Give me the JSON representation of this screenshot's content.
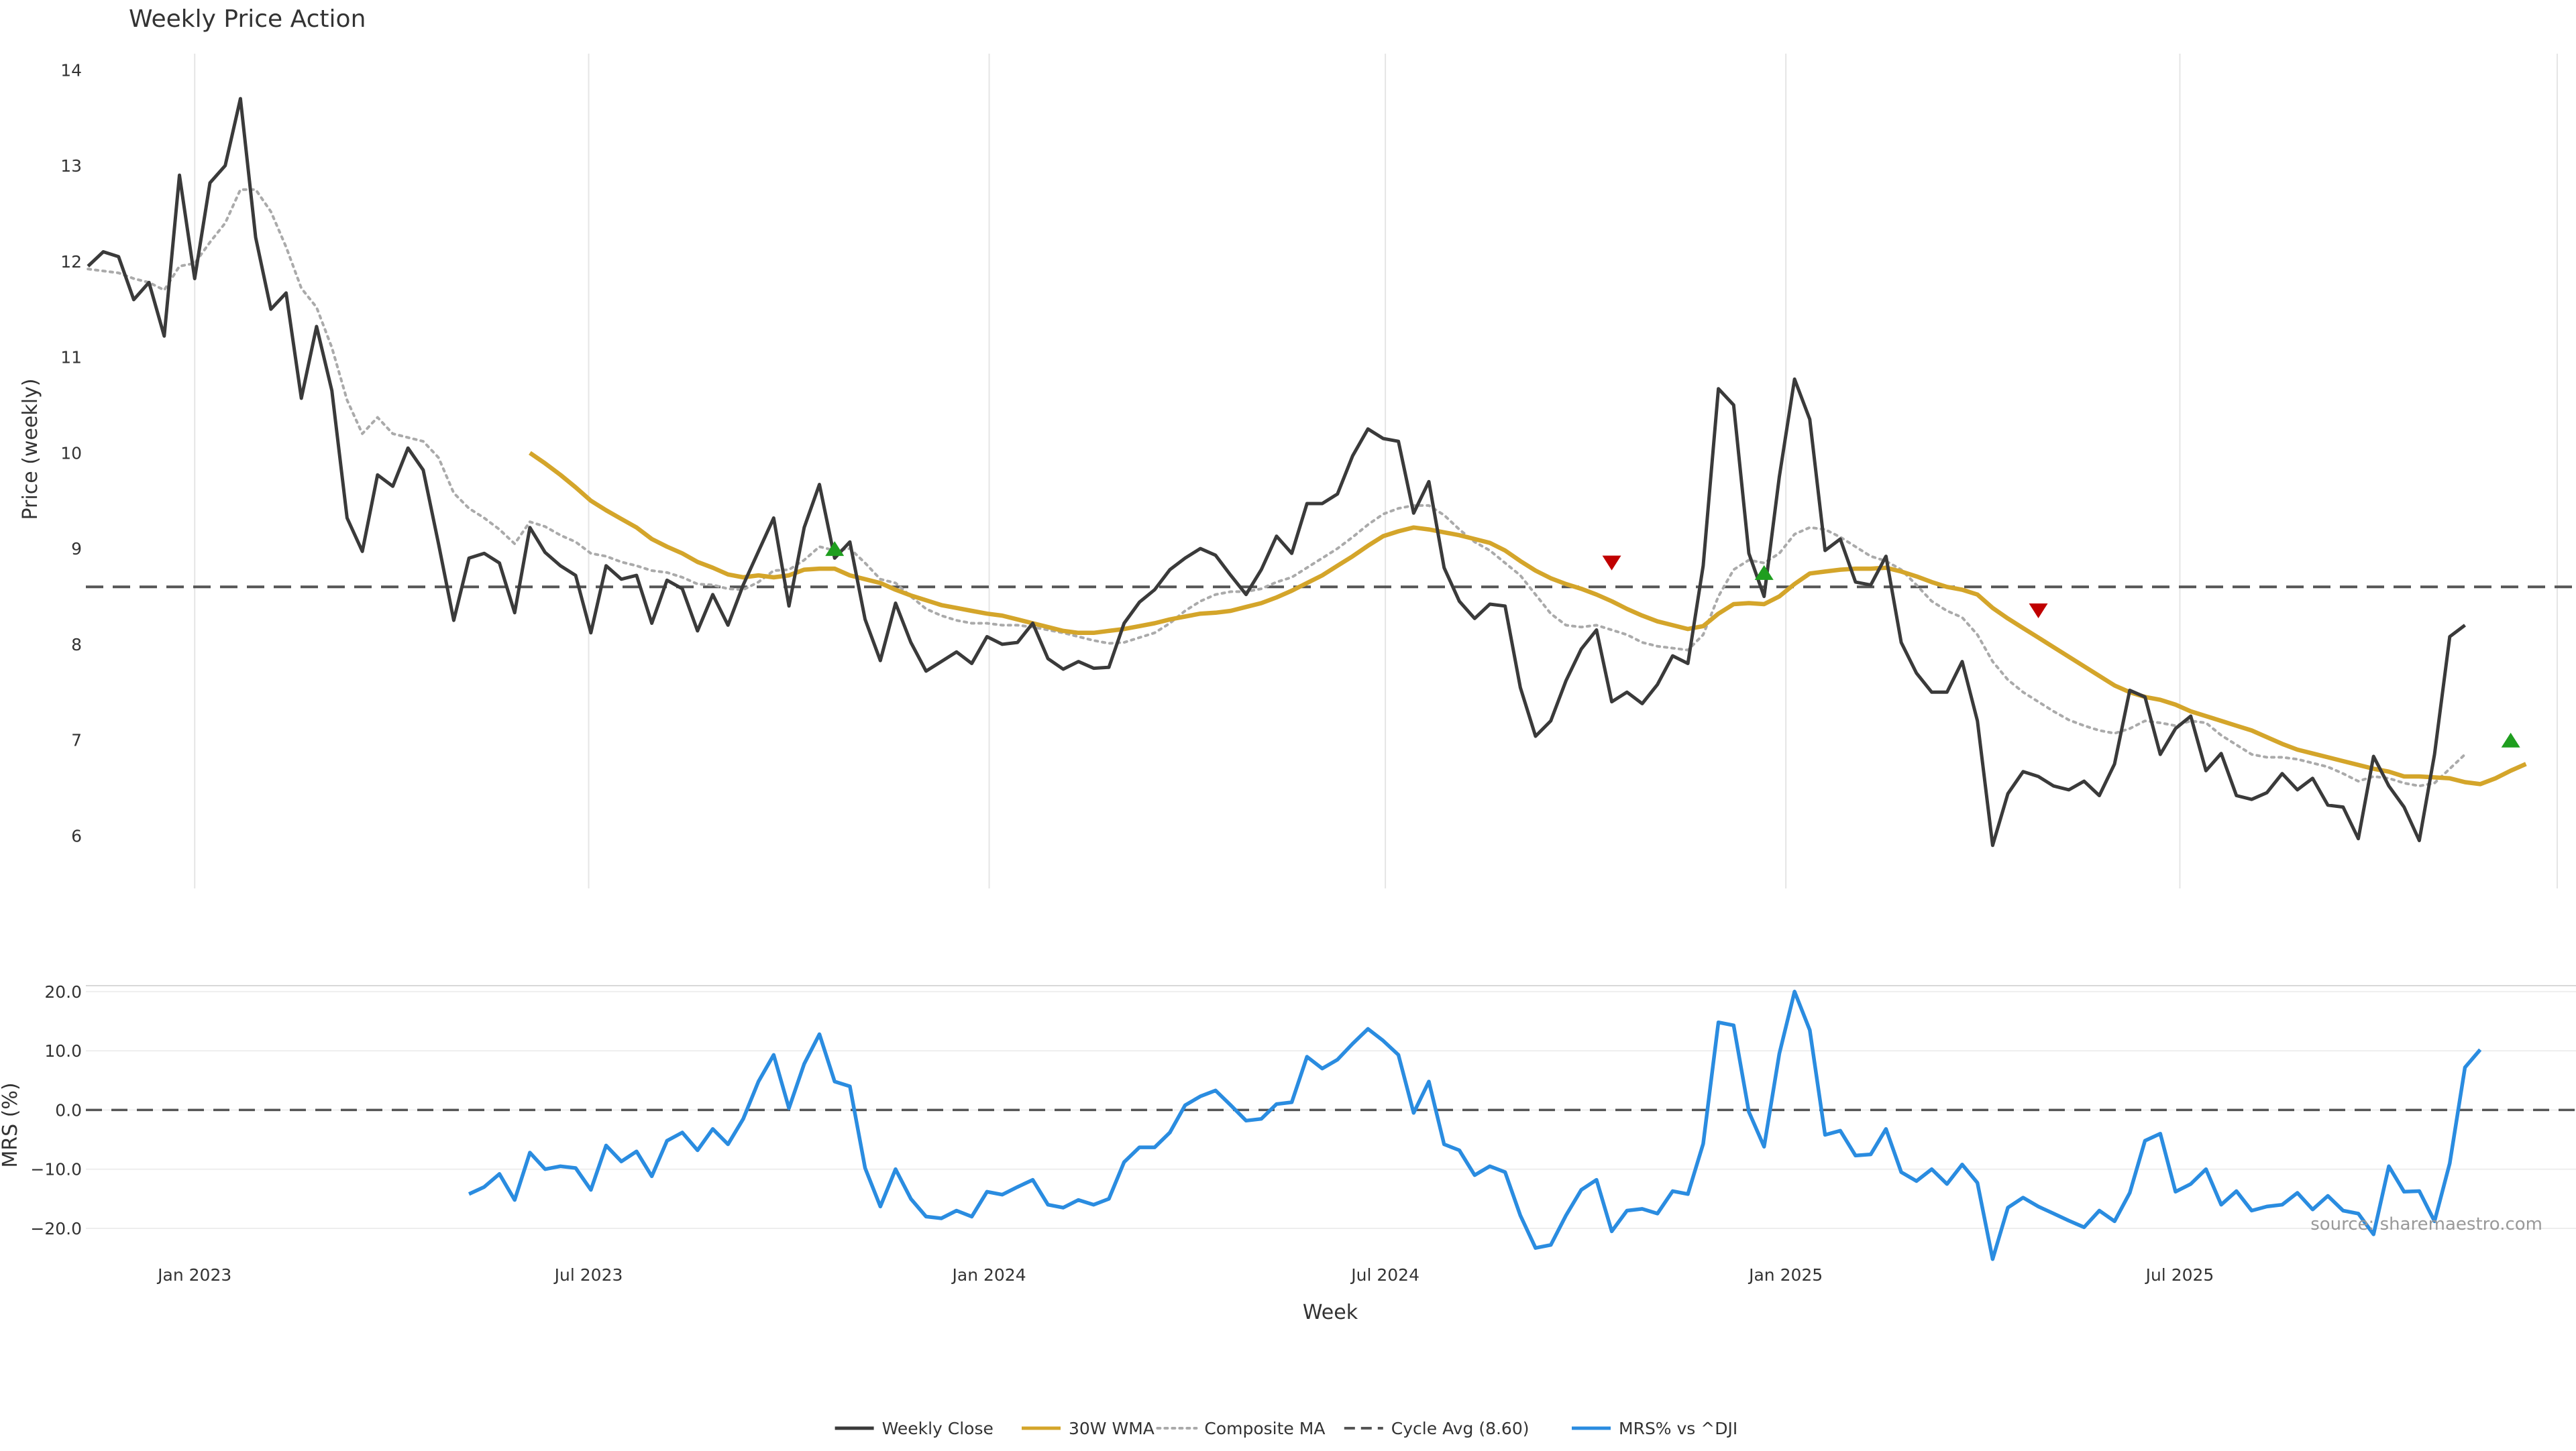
{
  "chart_data": {
    "type": "line",
    "title": "Weekly Price Action",
    "source": "source: sharemaestro.com",
    "xlabel": "Week",
    "x_ticks": [
      "Jan 2023",
      "Jul 2023",
      "Jan 2024",
      "Jul 2024",
      "Jan 2025",
      "Jul 2025"
    ],
    "x_tick_dates": [
      "2023-01-01",
      "2023-07-01",
      "2024-01-01",
      "2024-07-01",
      "2025-01-01",
      "2025-07-01"
    ],
    "x_range": [
      "2022-11-12",
      "2025-12-30"
    ],
    "grid": true,
    "legend_placement": "bottom-center",
    "colors": {
      "close": "#3a3a3a",
      "wma": "#d4a52a",
      "composite": "#aaaaaa",
      "cycle": "#555555",
      "mrs": "#2a8ce0",
      "buy": "#1f9e1f",
      "sell": "#c00000",
      "grid": "#e5e5e5"
    },
    "legend": [
      {
        "label": "Weekly Close",
        "style": "solid",
        "color": "#3a3a3a"
      },
      {
        "label": "30W WMA",
        "style": "solid",
        "color": "#d4a52a"
      },
      {
        "label": "Composite MA",
        "style": "dotted",
        "color": "#aaaaaa"
      },
      {
        "label": "Cycle Avg (8.60)",
        "style": "dashed",
        "color": "#555555"
      },
      {
        "label": "MRS% vs ^DJI",
        "style": "solid",
        "color": "#2a8ce0"
      }
    ],
    "price_panel": {
      "ylabel": "Price (weekly)",
      "ylim": [
        5.45,
        14.17
      ],
      "yticks": [
        6,
        7,
        8,
        9,
        10,
        11,
        12,
        13,
        14
      ],
      "cycle_avg": 8.6,
      "x_start": "2022-11-13",
      "week_step_days": 7,
      "series": [
        {
          "name": "Weekly Close",
          "key": "close",
          "start_index": 0,
          "values": [
            11.95,
            12.1,
            12.05,
            11.6,
            11.78,
            11.22,
            12.9,
            11.82,
            12.82,
            13.0,
            13.7,
            12.25,
            11.5,
            11.67,
            10.57,
            11.32,
            10.65,
            9.32,
            8.97,
            9.77,
            9.65,
            10.05,
            9.82,
            9.05,
            8.25,
            8.9,
            8.95,
            8.85,
            8.33,
            9.22,
            8.96,
            8.82,
            8.72,
            8.12,
            8.82,
            8.68,
            8.72,
            8.22,
            8.67,
            8.58,
            8.14,
            8.52,
            8.2,
            8.62,
            8.97,
            9.32,
            8.4,
            9.22,
            9.67,
            8.9,
            9.07,
            8.26,
            7.83,
            8.43,
            8.02,
            7.72,
            7.82,
            7.92,
            7.8,
            8.08,
            8.0,
            8.02,
            8.22,
            7.85,
            7.74,
            7.82,
            7.75,
            7.76,
            8.22,
            8.44,
            8.57,
            8.78,
            8.9,
            9.0,
            8.93,
            8.72,
            8.52,
            8.78,
            9.13,
            8.95,
            9.47,
            9.47,
            9.57,
            9.97,
            10.25,
            10.15,
            10.12,
            9.37,
            9.7,
            8.8,
            8.45,
            8.27,
            8.42,
            8.4,
            7.55,
            7.04,
            7.2,
            7.62,
            7.95,
            8.15,
            7.4,
            7.5,
            7.38,
            7.58,
            7.88,
            7.8,
            8.82,
            10.67,
            10.5,
            8.95,
            8.5,
            9.75,
            10.77,
            10.35,
            8.98,
            9.1,
            8.65,
            8.62,
            8.92,
            8.02,
            7.7,
            7.5,
            7.5,
            7.82,
            7.2,
            5.9,
            6.44,
            6.67,
            6.62,
            6.52,
            6.48,
            6.57,
            6.42,
            6.75,
            7.52,
            7.45,
            6.85,
            7.12,
            7.25,
            6.68,
            6.86,
            6.42,
            6.38,
            6.45,
            6.65,
            6.48,
            6.6,
            6.32,
            6.3,
            5.97,
            6.83,
            6.52,
            6.3,
            5.95,
            6.85,
            8.08,
            8.2
          ]
        },
        {
          "name": "30W WMA",
          "key": "wma",
          "start_index": 29,
          "values": [
            10.0,
            9.89,
            9.77,
            9.64,
            9.5,
            9.4,
            9.31,
            9.22,
            9.1,
            9.02,
            8.95,
            8.86,
            8.8,
            8.73,
            8.7,
            8.72,
            8.7,
            8.72,
            8.78,
            8.79,
            8.79,
            8.72,
            8.68,
            8.64,
            8.57,
            8.51,
            8.46,
            8.41,
            8.38,
            8.35,
            8.32,
            8.3,
            8.26,
            8.22,
            8.18,
            8.14,
            8.12,
            8.12,
            8.14,
            8.16,
            8.19,
            8.22,
            8.26,
            8.29,
            8.32,
            8.33,
            8.35,
            8.39,
            8.43,
            8.49,
            8.56,
            8.64,
            8.72,
            8.82,
            8.92,
            9.03,
            9.13,
            9.18,
            9.22,
            9.2,
            9.17,
            9.14,
            9.1,
            9.06,
            8.98,
            8.87,
            8.77,
            8.69,
            8.63,
            8.58,
            8.52,
            8.45,
            8.37,
            8.3,
            8.24,
            8.2,
            8.16,
            8.19,
            8.32,
            8.42,
            8.43,
            8.42,
            8.5,
            8.63,
            8.74,
            8.76,
            8.78,
            8.79,
            8.79,
            8.8,
            8.76,
            8.71,
            8.65,
            8.6,
            8.57,
            8.52,
            8.38,
            8.27,
            8.17,
            8.07,
            7.97,
            7.87,
            7.77,
            7.67,
            7.57,
            7.5,
            7.45,
            7.42,
            7.37,
            7.3,
            7.25,
            7.2,
            7.15,
            7.1,
            7.03,
            6.96,
            6.9,
            6.86,
            6.82,
            6.78,
            6.74,
            6.7,
            6.67,
            6.62,
            6.62,
            6.61,
            6.6,
            6.56,
            6.54,
            6.6,
            6.68,
            6.75
          ]
        },
        {
          "name": "Composite MA",
          "key": "composite",
          "start_index": 0,
          "values": [
            11.92,
            11.9,
            11.88,
            11.82,
            11.78,
            11.7,
            11.95,
            11.98,
            12.2,
            12.4,
            12.75,
            12.75,
            12.52,
            12.15,
            11.72,
            11.52,
            11.1,
            10.55,
            10.2,
            10.37,
            10.2,
            10.16,
            10.12,
            9.95,
            9.58,
            9.42,
            9.32,
            9.2,
            9.05,
            9.28,
            9.23,
            9.14,
            9.07,
            8.95,
            8.92,
            8.86,
            8.82,
            8.77,
            8.75,
            8.7,
            8.63,
            8.62,
            8.58,
            8.57,
            8.65,
            8.77,
            8.78,
            8.88,
            9.02,
            8.98,
            9.0,
            8.85,
            8.68,
            8.64,
            8.5,
            8.37,
            8.3,
            8.25,
            8.22,
            8.22,
            8.2,
            8.2,
            8.18,
            8.15,
            8.12,
            8.08,
            8.04,
            8.01,
            8.02,
            8.07,
            8.12,
            8.22,
            8.35,
            8.45,
            8.52,
            8.55,
            8.55,
            8.58,
            8.65,
            8.7,
            8.8,
            8.9,
            9.0,
            9.12,
            9.25,
            9.36,
            9.42,
            9.45,
            9.45,
            9.35,
            9.2,
            9.07,
            8.98,
            8.85,
            8.72,
            8.52,
            8.32,
            8.2,
            8.18,
            8.2,
            8.15,
            8.1,
            8.02,
            7.98,
            7.96,
            7.94,
            8.1,
            8.5,
            8.78,
            8.88,
            8.85,
            8.95,
            9.15,
            9.22,
            9.2,
            9.12,
            9.02,
            8.92,
            8.87,
            8.78,
            8.62,
            8.45,
            8.35,
            8.28,
            8.1,
            7.82,
            7.63,
            7.5,
            7.4,
            7.3,
            7.21,
            7.15,
            7.1,
            7.07,
            7.12,
            7.2,
            7.18,
            7.15,
            7.2,
            7.18,
            7.05,
            6.95,
            6.85,
            6.82,
            6.82,
            6.8,
            6.76,
            6.72,
            6.65,
            6.57,
            6.62,
            6.6,
            6.55,
            6.52,
            6.55,
            6.7,
            6.85
          ]
        }
      ],
      "signals": [
        {
          "type": "buy",
          "week_index": 49,
          "price": 9.0
        },
        {
          "type": "sell",
          "week_index": 100,
          "price": 8.85
        },
        {
          "type": "buy",
          "week_index": 110,
          "price": 8.75
        },
        {
          "type": "sell",
          "week_index": 128,
          "price": 8.35
        },
        {
          "type": "buy",
          "week_index": 159,
          "price": 7.0
        }
      ]
    },
    "mrs_panel": {
      "ylabel": "MRS (%)",
      "ylim": [
        -26.0,
        21.0
      ],
      "yticks": [
        -20.0,
        -10.0,
        0.0,
        10.0,
        20.0
      ],
      "ytick_labels": [
        "−20.0",
        "−10.0",
        "0.0",
        "10.0",
        "20.0"
      ],
      "zero_line": 0,
      "series": [
        {
          "name": "MRS% vs ^DJI",
          "key": "mrs",
          "start_index": 25,
          "values": [
            -14.2,
            -13.0,
            -10.8,
            -15.2,
            -7.2,
            -10.0,
            -9.5,
            -9.8,
            -13.5,
            -6.0,
            -8.7,
            -7.0,
            -11.2,
            -5.2,
            -3.8,
            -6.8,
            -3.2,
            -5.8,
            -1.5,
            4.8,
            9.3,
            0.3,
            7.8,
            12.8,
            4.8,
            4.0,
            -9.8,
            -16.3,
            -10.0,
            -15.0,
            -18.0,
            -18.3,
            -17.0,
            -18.0,
            -13.8,
            -14.3,
            -13.0,
            -11.8,
            -16.0,
            -16.5,
            -15.2,
            -16.0,
            -15.0,
            -8.8,
            -6.3,
            -6.3,
            -3.8,
            0.8,
            2.3,
            3.3,
            0.8,
            -1.8,
            -1.5,
            1.0,
            1.3,
            9.0,
            7.0,
            8.5,
            11.2,
            13.7,
            11.7,
            9.3,
            -0.5,
            4.8,
            -5.8,
            -6.8,
            -11.0,
            -9.5,
            -10.5,
            -17.8,
            -23.3,
            -22.8,
            -17.8,
            -13.5,
            -11.8,
            -20.5,
            -17.0,
            -16.7,
            -17.5,
            -13.7,
            -14.2,
            -5.7,
            14.8,
            14.3,
            -0.3,
            -6.2,
            9.5,
            20.0,
            13.5,
            -4.2,
            -3.5,
            -7.7,
            -7.5,
            -3.2,
            -10.5,
            -12.0,
            -10.0,
            -12.5,
            -9.2,
            -12.3,
            -25.2,
            -16.5,
            -14.8,
            -16.3,
            -17.5,
            -18.7,
            -19.8,
            -17.0,
            -18.8,
            -14.0,
            -5.2,
            -4.0,
            -13.8,
            -12.5,
            -10.0,
            -16.0,
            -13.7,
            -17.0,
            -16.3,
            -16.0,
            -14.0,
            -16.8,
            -14.5,
            -17.0,
            -17.5,
            -21.0,
            -9.5,
            -13.8,
            -13.7,
            -18.8,
            -9.0,
            7.2,
            10.2
          ]
        }
      ]
    }
  }
}
